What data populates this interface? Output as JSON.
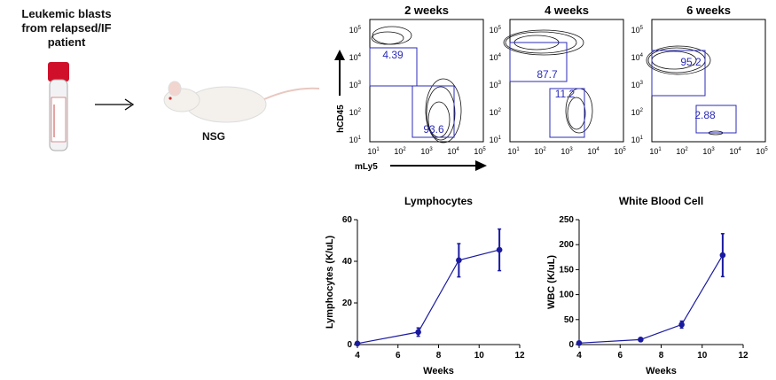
{
  "left": {
    "source_label_lines": [
      "Leukemic blasts",
      "from relapsed/IF",
      "patient"
    ],
    "mouse_label": "NSG"
  },
  "flow": {
    "y_axis_label": "hCD45",
    "x_axis_label": "mLy5",
    "tick_labels": [
      "10",
      "10",
      "10",
      "10",
      "10"
    ],
    "tick_exponents": [
      "1",
      "2",
      "3",
      "4",
      "5"
    ],
    "gate_color": "#2b2bb8",
    "panels": [
      {
        "title": "2 weeks",
        "upper_gate": "4.39",
        "lower_gate": "93.6"
      },
      {
        "title": "4 weeks",
        "upper_gate": "87.7",
        "lower_gate": "11.2"
      },
      {
        "title": "6 weeks",
        "upper_gate": "95.2",
        "lower_gate": "2.88"
      }
    ]
  },
  "chart_data": [
    {
      "type": "line",
      "title": "Lymphocytes",
      "xlabel": "Weeks",
      "ylabel": "Lymphocytes (K/uL)",
      "xlim": [
        4,
        12
      ],
      "ylim": [
        0,
        60
      ],
      "xticks": [
        4,
        6,
        8,
        10,
        12
      ],
      "yticks": [
        0,
        20,
        40,
        60
      ],
      "x": [
        4,
        7,
        9,
        11
      ],
      "y": [
        0.5,
        6,
        40.5,
        45.5
      ],
      "error": [
        0.5,
        2,
        8,
        10
      ],
      "color": "#1a1aa0",
      "grid": false
    },
    {
      "type": "line",
      "title": "White Blood Cell",
      "xlabel": "Weeks",
      "ylabel": "WBC (K/uL)",
      "xlim": [
        4,
        12
      ],
      "ylim": [
        0,
        250
      ],
      "xticks": [
        4,
        6,
        8,
        10,
        12
      ],
      "yticks": [
        0,
        50,
        100,
        150,
        200,
        250
      ],
      "x": [
        4,
        7,
        9,
        11
      ],
      "y": [
        3,
        10,
        40,
        179
      ],
      "error": [
        1,
        2,
        7,
        43
      ],
      "color": "#1a1aa0",
      "grid": false
    }
  ]
}
